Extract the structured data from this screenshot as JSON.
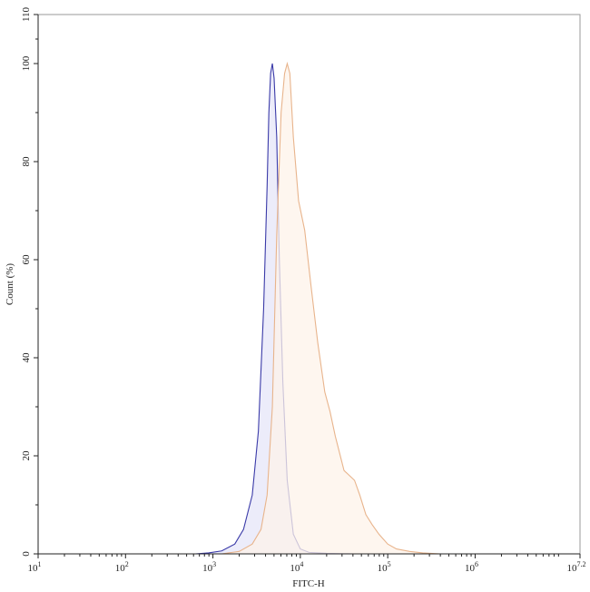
{
  "chart_data": {
    "type": "area",
    "title": "",
    "xlabel": "FITC-H",
    "ylabel": "Count  (%)",
    "xscale": "log10",
    "xlim": [
      1,
      7.2
    ],
    "ylim": [
      0,
      110
    ],
    "grid": false,
    "legend": "none",
    "x_ticks": [
      {
        "value": 1,
        "base": "10",
        "exp": "1"
      },
      {
        "value": 2,
        "base": "10",
        "exp": "2"
      },
      {
        "value": 3,
        "base": "10",
        "exp": "3"
      },
      {
        "value": 4,
        "base": "10",
        "exp": "4"
      },
      {
        "value": 5,
        "base": "10",
        "exp": "5"
      },
      {
        "value": 6,
        "base": "10",
        "exp": "6"
      },
      {
        "value": 7.2,
        "base": "10",
        "exp": "7.2"
      }
    ],
    "y_ticks": [
      {
        "value": 0,
        "label": "0"
      },
      {
        "value": 20,
        "label": "20"
      },
      {
        "value": 40,
        "label": "40"
      },
      {
        "value": 60,
        "label": "60"
      },
      {
        "value": 80,
        "label": "80"
      },
      {
        "value": 100,
        "label": "100"
      },
      {
        "value": 110,
        "label": "110"
      }
    ],
    "series": [
      {
        "stroke": "#3a3aa8",
        "fill": "#e6e6f8",
        "x_log10": [
          2.8,
          2.95,
          3.1,
          3.25,
          3.35,
          3.45,
          3.52,
          3.58,
          3.62,
          3.64,
          3.66,
          3.68,
          3.7,
          3.73,
          3.76,
          3.8,
          3.85,
          3.92,
          4.0,
          4.1,
          4.3,
          4.6
        ],
        "y": [
          0.0,
          0.2,
          0.6,
          2.0,
          5.0,
          12.0,
          25.0,
          50.0,
          75.0,
          90.0,
          98.0,
          100.0,
          97.0,
          85.0,
          60.0,
          35.0,
          15.0,
          4.0,
          1.0,
          0.3,
          0.1,
          0.0
        ]
      },
      {
        "stroke": "#e8b48c",
        "fill": "#fdf3e9",
        "x_log10": [
          3.1,
          3.3,
          3.45,
          3.55,
          3.62,
          3.68,
          3.73,
          3.78,
          3.82,
          3.85,
          3.88,
          3.92,
          3.98,
          4.05,
          4.12,
          4.2,
          4.28,
          4.34,
          4.4,
          4.5,
          4.62,
          4.68,
          4.75,
          4.82,
          4.9,
          5.0,
          5.1,
          5.25,
          5.4,
          5.6
        ],
        "y": [
          0.0,
          0.5,
          2.0,
          5.0,
          12.0,
          30.0,
          65.0,
          90.0,
          98.0,
          100.0,
          98.0,
          85.0,
          72.0,
          66.0,
          55.0,
          43.0,
          33.0,
          29.0,
          24.0,
          17.0,
          15.0,
          12.0,
          8.0,
          6.0,
          4.0,
          2.0,
          1.0,
          0.5,
          0.2,
          0.0
        ]
      }
    ]
  }
}
